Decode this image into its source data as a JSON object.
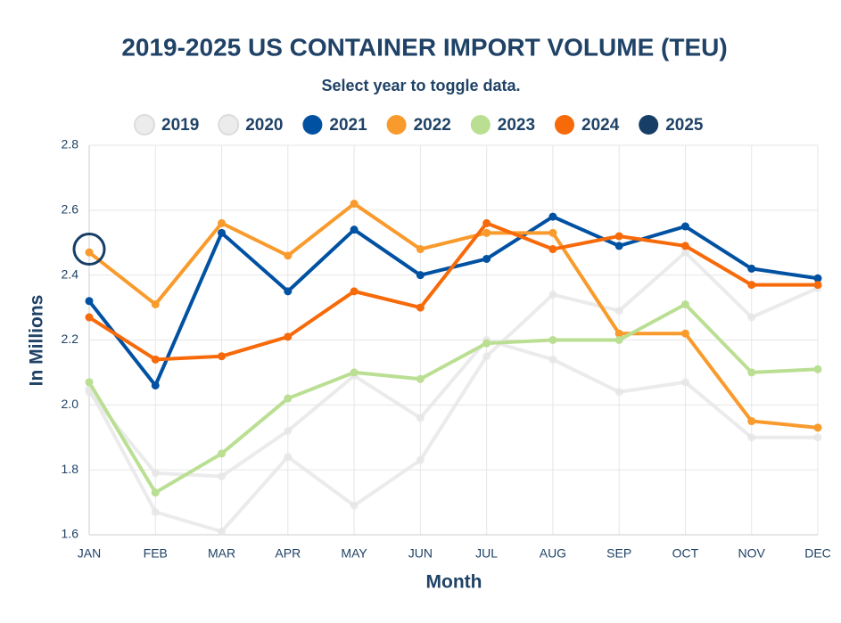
{
  "chart_data": {
    "type": "line",
    "title": "2019-2025 US CONTAINER IMPORT VOLUME (TEU)",
    "subtitle": "Select year to toggle data.",
    "x_label": "Month",
    "y_label": "In Millions",
    "categories": [
      "JAN",
      "FEB",
      "MAR",
      "APR",
      "MAY",
      "JUN",
      "JUL",
      "AUG",
      "SEP",
      "OCT",
      "NOV",
      "DEC"
    ],
    "series": [
      {
        "name": "2019",
        "color": "#e6e6e6",
        "visible": false,
        "values": [
          2.04,
          1.79,
          1.78,
          1.92,
          2.09,
          1.96,
          2.2,
          2.14,
          2.04,
          2.07,
          1.9,
          1.9
        ]
      },
      {
        "name": "2020",
        "color": "#e6e6e6",
        "visible": false,
        "values": [
          2.05,
          1.67,
          1.61,
          1.84,
          1.69,
          1.83,
          2.15,
          2.34,
          2.29,
          2.47,
          2.27,
          2.36
        ]
      },
      {
        "name": "2021",
        "color": "#0051a2",
        "visible": true,
        "values": [
          2.32,
          2.06,
          2.53,
          2.35,
          2.54,
          2.4,
          2.45,
          2.58,
          2.49,
          2.55,
          2.42,
          2.39
        ]
      },
      {
        "name": "2022",
        "color": "#f99a2c",
        "visible": true,
        "values": [
          2.47,
          2.31,
          2.56,
          2.46,
          2.62,
          2.48,
          2.53,
          2.53,
          2.22,
          2.22,
          1.95,
          1.93
        ]
      },
      {
        "name": "2023",
        "color": "#badf93",
        "visible": true,
        "values": [
          2.07,
          1.73,
          1.85,
          2.02,
          2.1,
          2.08,
          2.19,
          2.2,
          2.2,
          2.31,
          2.1,
          2.11
        ]
      },
      {
        "name": "2024",
        "color": "#f76a0a",
        "visible": true,
        "values": [
          2.27,
          2.14,
          2.15,
          2.21,
          2.35,
          2.3,
          2.56,
          2.48,
          2.52,
          2.49,
          2.37,
          2.37
        ]
      },
      {
        "name": "2025",
        "color": "#163e66",
        "visible": true,
        "values": [
          2.48,
          null,
          null,
          null,
          null,
          null,
          null,
          null,
          null,
          null,
          null,
          null
        ]
      }
    ],
    "ylim": [
      1.6,
      2.8
    ],
    "yticks": [
      1.6,
      1.8,
      {
        "value": 2,
        "label": "2.0"
      },
      2.2,
      2.4,
      2.6,
      2.8
    ],
    "grid": true
  }
}
